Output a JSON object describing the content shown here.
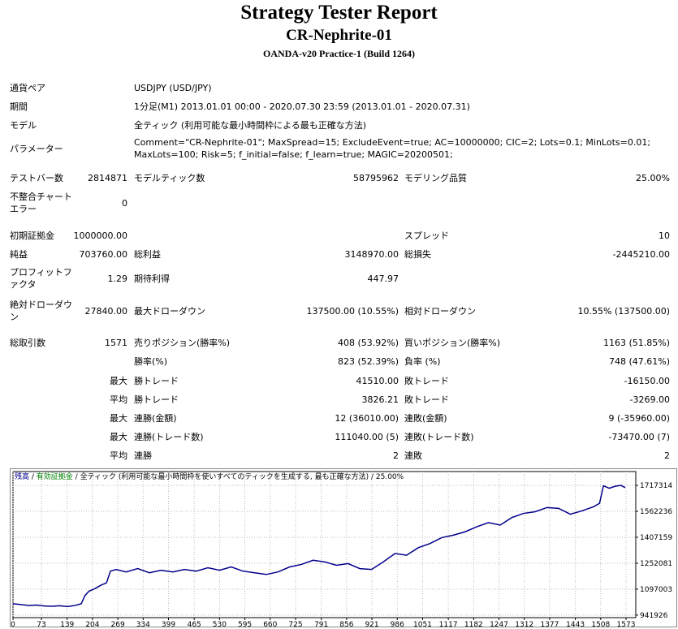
{
  "header": {
    "title": "Strategy Tester Report",
    "subtitle": "CR-Nephrite-01",
    "build": "OANDA-v20 Practice-1 (Build 1264)"
  },
  "info": [
    [
      "通貨ペア",
      "USDJPY (USD/JPY)"
    ],
    [
      "期間",
      "1分足(M1) 2013.01.01 00:00 - 2020.07.30 23:59 (2013.01.01 - 2020.07.31)"
    ],
    [
      "モデル",
      "全ティック (利用可能な最小時間枠による最も正確な方法)"
    ],
    [
      "パラメーター",
      "Comment=\"CR-Nephrite-01\"; MaxSpread=15; ExcludeEvent=true; AC=10000000; CIC=2; Lots=0.1; MinLots=0.01; MaxLots=100; Risk=5; f_initial=false; f_learn=true; MAGIC=20200501;"
    ]
  ],
  "stats": {
    "rows": [
      [
        "テストバー数",
        "2814871",
        "モデルティック数",
        "58795962",
        "モデリング品質",
        "25.00%"
      ],
      [
        "不整合チャートエラー",
        "0",
        null,
        null,
        null,
        null
      ],
      [
        "初期証拠金",
        "1000000.00",
        null,
        null,
        "スプレッド",
        "10"
      ],
      [
        "純益",
        "703760.00",
        "総利益",
        "3148970.00",
        "総損失",
        "-2445210.00"
      ],
      [
        "プロフィットファクタ",
        "1.29",
        "期待利得",
        "447.97",
        null,
        null
      ],
      [
        "絶対ドローダウン",
        "27840.00",
        "最大ドローダウン",
        "137500.00 (10.55%)",
        "相対ドローダウン",
        "10.55% (137500.00)"
      ],
      [
        "総取引数",
        "1571",
        "売りポジション(勝率%)",
        "408 (53.92%)",
        "買いポジション(勝率%)",
        "1163 (51.85%)"
      ],
      [
        null,
        null,
        "勝率(%)",
        "823 (52.39%)",
        "負率 (%)",
        "748 (47.61%)"
      ],
      [
        null,
        "最大",
        "勝トレード",
        "41510.00",
        "敗トレード",
        "-16150.00"
      ],
      [
        null,
        "平均",
        "勝トレード",
        "3826.21",
        "敗トレード",
        "-3269.00"
      ],
      [
        null,
        "最大",
        "連勝(金額)",
        "12 (36010.00)",
        "連敗(金額)",
        "9 (-35960.00)"
      ],
      [
        null,
        "最大",
        "連勝(トレード数)",
        "111040.00 (5)",
        "連敗(トレード数)",
        "-73470.00 (7)"
      ],
      [
        null,
        "平均",
        "連勝",
        "2",
        "連敗",
        "2"
      ]
    ]
  },
  "chart_data": {
    "type": "line",
    "equity_label": "有効証拠金",
    "equity_color": "#008000",
    "model_label": "全ティック (利用可能な最小時間枠を使いすべてのティックを生成する, 最も正確な方法)",
    "quality": "25.00%",
    "x": [
      0,
      20,
      40,
      60,
      80,
      100,
      120,
      140,
      160,
      175,
      185,
      195,
      210,
      225,
      240,
      250,
      265,
      290,
      320,
      350,
      380,
      410,
      440,
      470,
      500,
      530,
      560,
      590,
      620,
      650,
      680,
      710,
      740,
      770,
      800,
      830,
      860,
      890,
      920,
      950,
      980,
      1010,
      1040,
      1070,
      1100,
      1130,
      1160,
      1190,
      1220,
      1250,
      1280,
      1310,
      1340,
      1370,
      1400,
      1430,
      1460,
      1490,
      1505,
      1515,
      1530,
      1545,
      1560,
      1571
    ],
    "series": [
      {
        "name": "残高",
        "color": "#00008b",
        "values": [
          1010000,
          1005000,
          1000000,
          1002000,
          997000,
          995000,
          998000,
          993000,
          1000000,
          1010000,
          1060000,
          1085000,
          1100000,
          1120000,
          1135000,
          1205000,
          1215000,
          1200000,
          1220000,
          1195000,
          1210000,
          1200000,
          1215000,
          1205000,
          1225000,
          1210000,
          1230000,
          1205000,
          1195000,
          1185000,
          1200000,
          1230000,
          1245000,
          1270000,
          1260000,
          1240000,
          1250000,
          1220000,
          1215000,
          1260000,
          1310000,
          1300000,
          1345000,
          1370000,
          1405000,
          1420000,
          1440000,
          1470000,
          1495000,
          1480000,
          1525000,
          1550000,
          1560000,
          1585000,
          1580000,
          1545000,
          1565000,
          1590000,
          1610000,
          1715000,
          1700000,
          1712000,
          1717314,
          1703760
        ]
      }
    ],
    "xlim": [
      0,
      1598
    ],
    "xticks": [
      0,
      73,
      139,
      204,
      269,
      334,
      399,
      465,
      530,
      595,
      660,
      725,
      791,
      856,
      921,
      986,
      1051,
      1117,
      1182,
      1247,
      1312,
      1377,
      1443,
      1508,
      1573
    ],
    "ylim": [
      927000,
      1800000
    ],
    "yticks": [
      941926,
      1097003,
      1252081,
      1407159,
      1562236,
      1717314
    ],
    "grid": true
  }
}
